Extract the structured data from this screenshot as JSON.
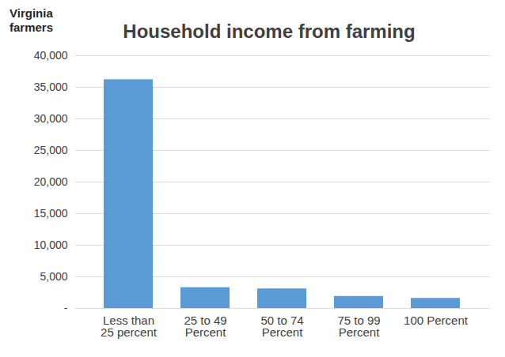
{
  "chart_data": {
    "type": "bar",
    "title": "Household income from farming",
    "ylabel": "Virginia farmers",
    "categories": [
      "Less than 25 percent",
      "25 to 49 Percent",
      "50 to 74 Percent",
      "75 to 99 Percent",
      "100 Percent"
    ],
    "values": [
      36200,
      3300,
      3100,
      1900,
      1600
    ],
    "color": "#5b9bd5",
    "ylim": [
      0,
      40000
    ],
    "yticks": [
      {
        "value": 0,
        "label": "-"
      },
      {
        "value": 5000,
        "label": "5,000"
      },
      {
        "value": 10000,
        "label": "10,000"
      },
      {
        "value": 15000,
        "label": "15,000"
      },
      {
        "value": 20000,
        "label": "20,000"
      },
      {
        "value": 25000,
        "label": "25,000"
      },
      {
        "value": 30000,
        "label": "30,000"
      },
      {
        "value": 35000,
        "label": "35,000"
      },
      {
        "value": 40000,
        "label": "40,000"
      }
    ],
    "grid": true
  }
}
